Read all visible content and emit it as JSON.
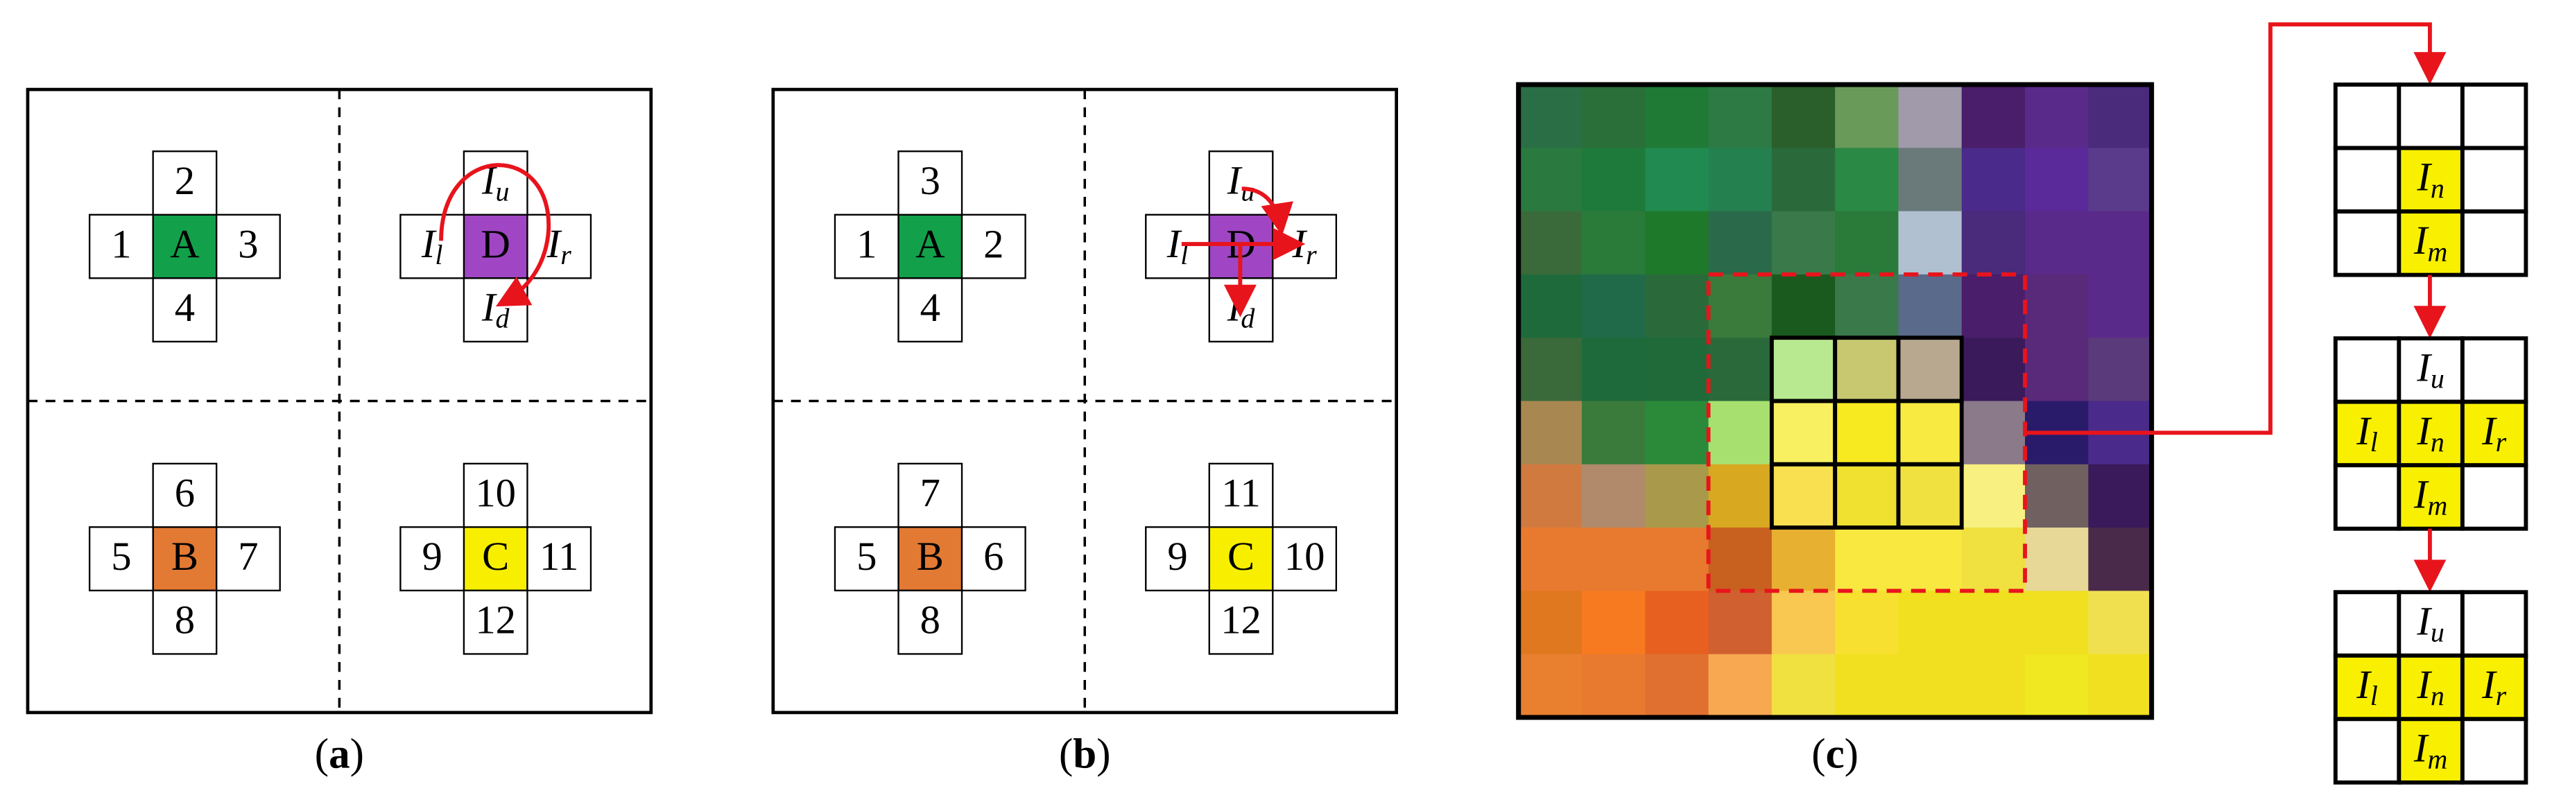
{
  "panels": [
    {
      "caption": [
        "(",
        "a",
        ")"
      ],
      "crosses": [
        {
          "center": "A",
          "top": "2",
          "left": "1",
          "right": "3",
          "bottom": "4"
        },
        {
          "center": "D",
          "top": {
            "main": "I",
            "sub": "u"
          },
          "left": {
            "main": "I",
            "sub": "l"
          },
          "right": {
            "main": "I",
            "sub": "r"
          },
          "bottom": {
            "main": "I",
            "sub": "d"
          }
        },
        {
          "center": "B",
          "top": "6",
          "left": "5",
          "right": "7",
          "bottom": "8"
        },
        {
          "center": "C",
          "top": "10",
          "left": "9",
          "right": "11",
          "bottom": "12"
        }
      ]
    },
    {
      "caption": [
        "(",
        "b",
        ")"
      ],
      "crosses": [
        {
          "center": "A",
          "top": "3",
          "left": "1",
          "right": "2",
          "bottom": "4"
        },
        {
          "center": "D",
          "top": {
            "main": "I",
            "sub": "u"
          },
          "left": {
            "main": "I",
            "sub": "l"
          },
          "right": {
            "main": "I",
            "sub": "r"
          },
          "bottom": {
            "main": "I",
            "sub": "d"
          }
        },
        {
          "center": "B",
          "top": "7",
          "left": "5",
          "right": "6",
          "bottom": "8"
        },
        {
          "center": "C",
          "top": "11",
          "left": "9",
          "right": "10",
          "bottom": "12"
        }
      ]
    }
  ],
  "panel_c": {
    "caption": [
      "(",
      "c",
      ")"
    ],
    "sequence": [
      {
        "cells": [
          [
            null,
            null,
            null
          ],
          [
            null,
            {
              "main": "I",
              "sub": "n",
              "highlight": true
            },
            null
          ],
          [
            null,
            {
              "main": "I",
              "sub": "m",
              "highlight": true
            },
            null
          ]
        ]
      },
      {
        "cells": [
          [
            null,
            {
              "main": "I",
              "sub": "u",
              "highlight": false
            },
            null
          ],
          [
            {
              "main": "I",
              "sub": "l",
              "highlight": true
            },
            {
              "main": "I",
              "sub": "n",
              "highlight": true
            },
            {
              "main": "I",
              "sub": "r",
              "highlight": true
            }
          ],
          [
            null,
            {
              "main": "I",
              "sub": "m",
              "highlight": true
            },
            null
          ]
        ]
      },
      {
        "cells": [
          [
            null,
            {
              "main": "I",
              "sub": "u",
              "highlight": false
            },
            null
          ],
          [
            {
              "main": "I",
              "sub": "l",
              "highlight": true
            },
            {
              "main": "I",
              "sub": "n",
              "highlight": true
            },
            {
              "main": "I",
              "sub": "r",
              "highlight": true
            }
          ],
          [
            null,
            {
              "main": "I",
              "sub": "m",
              "highlight": true
            },
            null
          ]
        ]
      }
    ]
  }
}
